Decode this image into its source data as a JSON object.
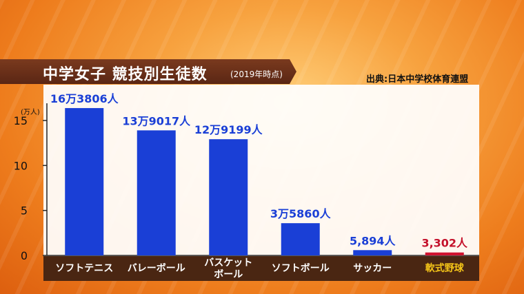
{
  "header": {
    "title": "中学女子 競技別生徒数",
    "subtitle": "(2019年時点)",
    "source": "出典:日本中学校体育連盟"
  },
  "chart_data": {
    "type": "bar",
    "categories": [
      "ソフトテニス",
      "バレーボール",
      "バスケット\nボール",
      "ソフトボール",
      "サッカー",
      "軟式野球"
    ],
    "values": [
      16.3806,
      13.9017,
      12.9199,
      3.586,
      0.5894,
      0.3302
    ],
    "data_labels": [
      "16万3806人",
      "13万9017人",
      "12万9199人",
      "3万5860人",
      "5,894人",
      "3,302人"
    ],
    "highlight_index": 5,
    "ylabel": "(万人)",
    "ylim": [
      0,
      17
    ],
    "yticks": [
      0,
      5,
      10,
      15
    ],
    "grid": false,
    "colors": {
      "bar": "#1a3fd6",
      "highlight_bar": "#d0122e",
      "label": "#1a3fd6",
      "highlight_label": "#c4112b",
      "category": "#ffffff",
      "highlight_category": "#f5c518",
      "axis": "#222222"
    }
  }
}
